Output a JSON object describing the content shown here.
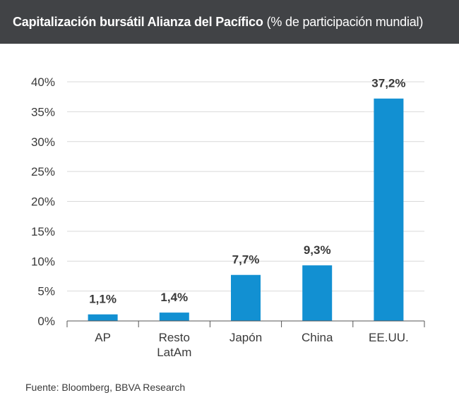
{
  "header": {
    "title_bold": "Capitalización bursátil Alianza del Pacífico",
    "title_light": "(% de participación mundial)"
  },
  "footer": {
    "source": "Fuente: Bloomberg, BBVA Research"
  },
  "colors": {
    "bar": "#1290d2",
    "header_bg": "#414346",
    "grid": "#d9d9d9",
    "axis": "#555555",
    "text": "#3a3a3a"
  },
  "chart_data": {
    "type": "bar",
    "categories": [
      [
        "AP"
      ],
      [
        "Resto",
        "LatAm"
      ],
      [
        "Japón"
      ],
      [
        "China"
      ],
      [
        "EE.UU."
      ]
    ],
    "values": [
      1.1,
      1.4,
      7.7,
      9.3,
      37.2
    ],
    "value_labels": [
      "1,1%",
      "1,4%",
      "7,7%",
      "9,3%",
      "37,2%"
    ],
    "ylim": [
      0,
      40
    ],
    "yticks": [
      0,
      5,
      10,
      15,
      20,
      25,
      30,
      35,
      40
    ],
    "ytick_labels": [
      "0%",
      "5%",
      "10%",
      "15%",
      "20%",
      "25%",
      "30%",
      "35%",
      "40%"
    ],
    "grid": true,
    "legend": false
  }
}
